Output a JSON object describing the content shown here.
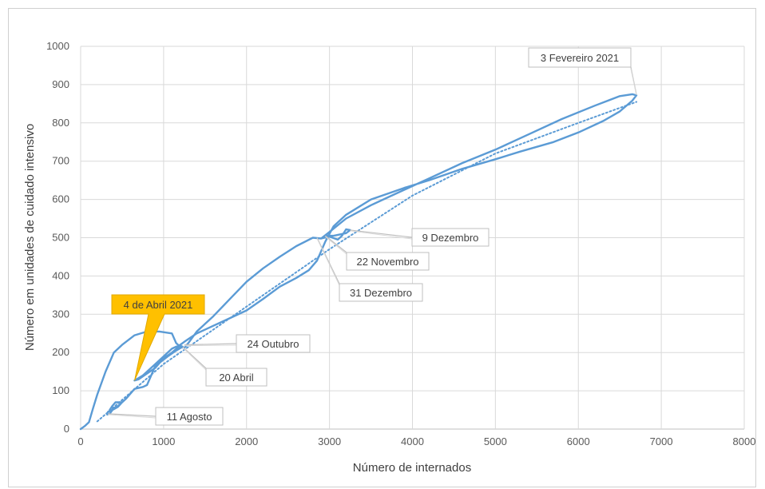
{
  "chart_data": {
    "type": "line",
    "title": "",
    "xlabel": "Número de internados",
    "ylabel": "Número em unidades de cuidado intensivo",
    "xlim": [
      0,
      8000
    ],
    "ylim": [
      0,
      1000
    ],
    "x_ticks": [
      "0",
      "1000",
      "2000",
      "3000",
      "4000",
      "5000",
      "6000",
      "7000",
      "8000"
    ],
    "y_ticks": [
      "0",
      "100",
      "200",
      "300",
      "400",
      "500",
      "600",
      "700",
      "800",
      "900",
      "1000"
    ],
    "grid": true,
    "legend": "none",
    "colors": {
      "series": "#5b9bd5",
      "trend": "#5b9bd5",
      "highlight": "#ffc000"
    },
    "series": [
      {
        "style": "solid",
        "points": [
          [
            0,
            0
          ],
          [
            50,
            8
          ],
          [
            100,
            18
          ],
          [
            150,
            55
          ],
          [
            200,
            90
          ],
          [
            300,
            150
          ],
          [
            400,
            200
          ],
          [
            500,
            220
          ],
          [
            650,
            245
          ],
          [
            800,
            255
          ],
          [
            950,
            255
          ],
          [
            1100,
            250
          ],
          [
            1150,
            225
          ],
          [
            1200,
            215
          ],
          [
            1250,
            212
          ],
          [
            1300,
            225
          ],
          [
            1400,
            255
          ],
          [
            1600,
            295
          ],
          [
            1800,
            340
          ],
          [
            2000,
            385
          ],
          [
            2200,
            420
          ],
          [
            2400,
            450
          ],
          [
            2600,
            478
          ],
          [
            2800,
            500
          ],
          [
            2900,
            498
          ],
          [
            3000,
            503
          ],
          [
            3100,
            495
          ],
          [
            3150,
            505
          ],
          [
            3200,
            522
          ],
          [
            3250,
            520
          ],
          [
            3200,
            512
          ],
          [
            3050,
            505
          ],
          [
            2950,
            505
          ],
          [
            2900,
            498
          ],
          [
            3000,
            515
          ],
          [
            3200,
            550
          ],
          [
            3500,
            585
          ],
          [
            3800,
            615
          ],
          [
            4200,
            655
          ],
          [
            4600,
            695
          ],
          [
            5000,
            730
          ],
          [
            5400,
            770
          ],
          [
            5800,
            810
          ],
          [
            6200,
            845
          ],
          [
            6500,
            870
          ],
          [
            6650,
            875
          ],
          [
            6700,
            872
          ],
          [
            6650,
            858
          ],
          [
            6500,
            830
          ],
          [
            6300,
            805
          ],
          [
            6000,
            775
          ],
          [
            5700,
            750
          ],
          [
            5300,
            725
          ],
          [
            5000,
            705
          ],
          [
            4600,
            680
          ],
          [
            4200,
            650
          ],
          [
            3900,
            630
          ],
          [
            3500,
            600
          ],
          [
            3200,
            560
          ],
          [
            3050,
            530
          ],
          [
            2950,
            490
          ],
          [
            2850,
            440
          ],
          [
            2750,
            415
          ],
          [
            2600,
            395
          ],
          [
            2400,
            372
          ],
          [
            2200,
            340
          ],
          [
            2000,
            310
          ],
          [
            1800,
            290
          ],
          [
            1600,
            270
          ],
          [
            1400,
            250
          ],
          [
            1250,
            228
          ],
          [
            1200,
            220
          ],
          [
            1100,
            210
          ],
          [
            1000,
            190
          ],
          [
            900,
            170
          ],
          [
            750,
            140
          ],
          [
            650,
            127
          ],
          [
            700,
            130
          ],
          [
            800,
            145
          ],
          [
            900,
            160
          ],
          [
            1000,
            185
          ],
          [
            1100,
            200
          ],
          [
            1200,
            218
          ],
          [
            1230,
            215
          ],
          [
            1150,
            205
          ],
          [
            1050,
            190
          ],
          [
            900,
            165
          ],
          [
            800,
            115
          ],
          [
            750,
            110
          ],
          [
            650,
            105
          ],
          [
            550,
            80
          ],
          [
            450,
            60
          ],
          [
            400,
            55
          ],
          [
            350,
            40
          ],
          [
            320,
            38
          ],
          [
            330,
            45
          ],
          [
            400,
            52
          ],
          [
            450,
            58
          ],
          [
            500,
            70
          ],
          [
            420,
            70
          ],
          [
            380,
            60
          ],
          [
            350,
            50
          ]
        ]
      },
      {
        "style": "dotted",
        "name": "",
        "points": [
          [
            200,
            20
          ],
          [
            1000,
            170
          ],
          [
            2000,
            320
          ],
          [
            3000,
            470
          ],
          [
            4000,
            610
          ],
          [
            5000,
            720
          ],
          [
            6000,
            800
          ],
          [
            6700,
            855
          ]
        ]
      }
    ],
    "annotations": [
      {
        "text": "3 Fevereiro 2021",
        "x": 6700,
        "y": 875
      },
      {
        "text": "9 Dezembro",
        "x": 3250,
        "y": 520
      },
      {
        "text": "22 Novembro",
        "x": 2950,
        "y": 505
      },
      {
        "text": "31 Dezembro",
        "x": 2850,
        "y": 500
      },
      {
        "text": "24 Outubro",
        "x": 1250,
        "y": 220
      },
      {
        "text": "20 Abril",
        "x": 1230,
        "y": 215
      },
      {
        "text": "11 Agosto",
        "x": 330,
        "y": 40
      },
      {
        "text": "4 de Abril 2021",
        "x": 650,
        "y": 127,
        "highlight": true
      }
    ]
  }
}
